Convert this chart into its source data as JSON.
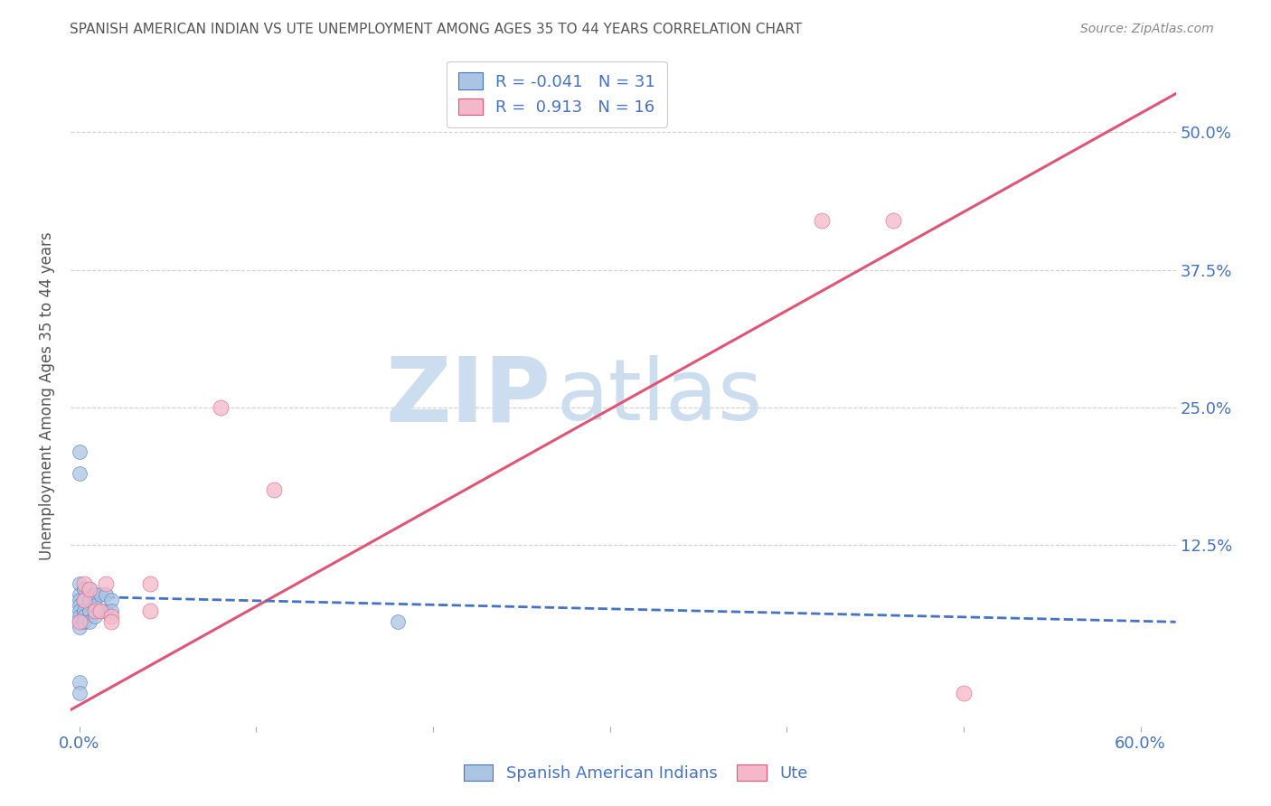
{
  "title": "SPANISH AMERICAN INDIAN VS UTE UNEMPLOYMENT AMONG AGES 35 TO 44 YEARS CORRELATION CHART",
  "source": "Source: ZipAtlas.com",
  "xlabel": "",
  "ylabel": "Unemployment Among Ages 35 to 44 years",
  "xlim": [
    -0.005,
    0.62
  ],
  "ylim": [
    -0.04,
    0.56
  ],
  "xticks": [
    0.0,
    0.1,
    0.2,
    0.3,
    0.4,
    0.5,
    0.6
  ],
  "xticklabels": [
    "0.0%",
    "",
    "",
    "",
    "",
    "",
    "60.0%"
  ],
  "right_yticks": [
    0.125,
    0.25,
    0.375,
    0.5
  ],
  "right_yticklabels": [
    "12.5%",
    "25.0%",
    "37.5%",
    "50.0%"
  ],
  "legend_r1": "R = -0.041",
  "legend_n1": "N = 31",
  "legend_r2": "R =  0.913",
  "legend_n2": "N = 16",
  "watermark_zip": "ZIP",
  "watermark_atlas": "atlas",
  "blue_scatter_x": [
    0.0,
    0.0,
    0.0,
    0.0,
    0.0,
    0.0,
    0.0,
    0.0,
    0.003,
    0.003,
    0.003,
    0.003,
    0.003,
    0.006,
    0.006,
    0.006,
    0.006,
    0.009,
    0.009,
    0.009,
    0.012,
    0.012,
    0.015,
    0.015,
    0.018,
    0.018,
    0.0,
    0.0,
    0.0,
    0.0,
    0.18
  ],
  "blue_scatter_y": [
    0.09,
    0.08,
    0.075,
    0.07,
    0.065,
    0.06,
    0.055,
    0.05,
    0.085,
    0.075,
    0.065,
    0.06,
    0.055,
    0.085,
    0.075,
    0.065,
    0.055,
    0.08,
    0.07,
    0.06,
    0.08,
    0.065,
    0.08,
    0.065,
    0.075,
    0.065,
    0.21,
    0.19,
    0.0,
    -0.01,
    0.055
  ],
  "pink_scatter_x": [
    0.0,
    0.003,
    0.003,
    0.006,
    0.009,
    0.012,
    0.015,
    0.018,
    0.018,
    0.04,
    0.04,
    0.08,
    0.11,
    0.42,
    0.46,
    0.5
  ],
  "pink_scatter_y": [
    0.055,
    0.09,
    0.075,
    0.085,
    0.065,
    0.065,
    0.09,
    0.06,
    0.055,
    0.09,
    0.065,
    0.25,
    0.175,
    0.42,
    0.42,
    -0.01
  ],
  "blue_line_x": [
    0.0,
    0.62
  ],
  "blue_line_y": [
    0.078,
    0.055
  ],
  "pink_line_x": [
    -0.005,
    0.62
  ],
  "pink_line_y": [
    -0.025,
    0.535
  ],
  "scatter_size_blue": 130,
  "scatter_size_pink": 150,
  "blue_color": "#aac4e2",
  "pink_color": "#f5b8ca",
  "blue_line_color": "#4472c4",
  "pink_line_color": "#e05575",
  "title_color": "#555555",
  "source_color": "#888888",
  "axis_label_color": "#555555",
  "tick_color": "#4472c4",
  "grid_color": "#d0d0d0",
  "watermark_color": "#ccddf0"
}
